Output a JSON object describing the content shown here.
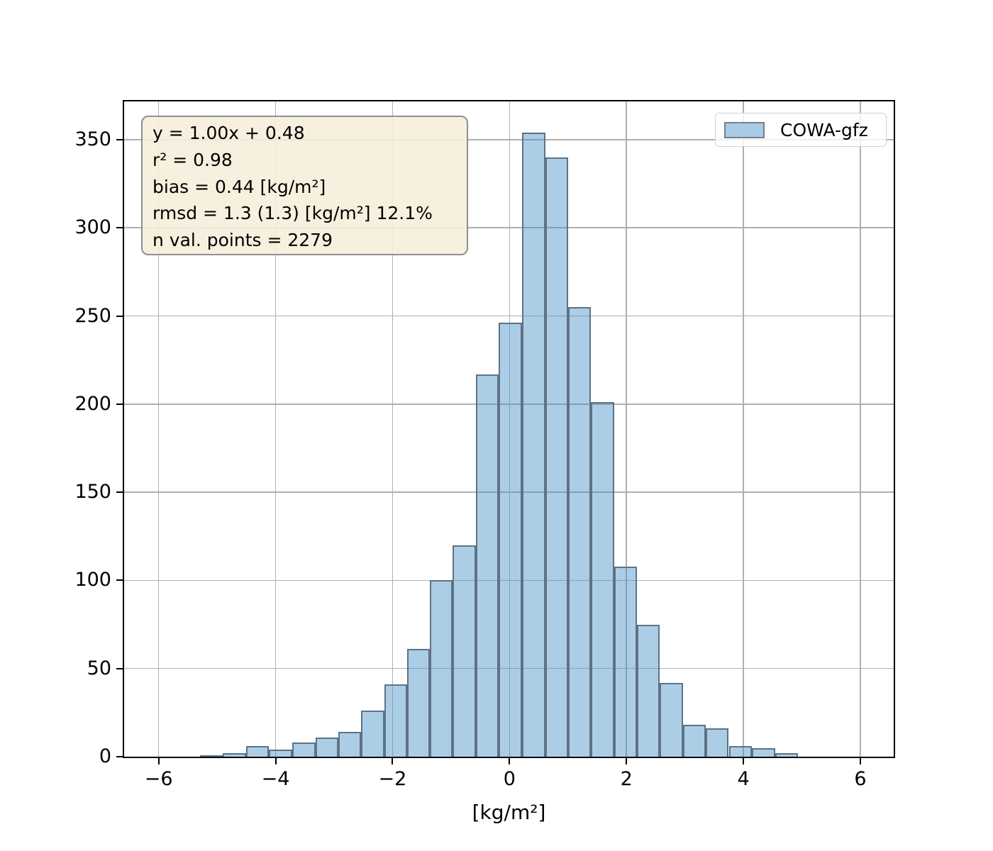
{
  "figure": {
    "background": "#ffffff",
    "axes": {
      "spine_color": "#000000",
      "grid_color": "#b0b0b0",
      "tick_color": "#000000"
    }
  },
  "stats_box": {
    "bg": "#f7eed9",
    "border": "#8f8f8f",
    "lines": [
      "y = 1.00x + 0.48",
      "r² = 0.98",
      "bias = 0.44 [kg/m²]",
      "rmsd = 1.3 (1.3) [kg/m²] 12.1%",
      "n val. points = 2279"
    ]
  },
  "legend": {
    "label": "COWA-gfz",
    "swatch_fill": "#a9cbe5",
    "swatch_border": "#75808a",
    "bg": "#ffffff",
    "border": "#d2d2d2"
  },
  "chart_data": {
    "type": "bar",
    "subtype": "histogram",
    "title": "",
    "xlabel": "[kg/m²]",
    "ylabel": "",
    "series_label": "COWA-gfz",
    "grid": true,
    "legend_position": "upper right",
    "xlim": [
      -6.59,
      6.57
    ],
    "ylim": [
      0,
      371.7
    ],
    "xticks": [
      -6,
      -4,
      -2,
      0,
      2,
      4,
      6
    ],
    "xtick_labels": [
      "−6",
      "−4",
      "−2",
      "0",
      "2",
      "4",
      "6"
    ],
    "yticks": [
      0,
      50,
      100,
      150,
      200,
      250,
      300,
      350
    ],
    "ytick_labels": [
      "0",
      "50",
      "100",
      "150",
      "200",
      "250",
      "300",
      "350"
    ],
    "bin_edges": [
      -5.29,
      -4.9,
      -4.5,
      -4.11,
      -3.72,
      -3.32,
      -2.93,
      -2.54,
      -2.14,
      -1.75,
      -1.36,
      -0.97,
      -0.57,
      -0.18,
      0.21,
      0.61,
      1.0,
      1.39,
      1.79,
      2.18,
      2.57,
      2.97,
      3.36,
      3.75,
      4.15,
      4.54,
      4.93
    ],
    "counts": [
      1,
      2,
      6,
      4,
      8,
      11,
      14,
      26,
      41,
      61,
      100,
      120,
      217,
      246,
      354,
      340,
      255,
      201,
      108,
      75,
      42,
      18,
      16,
      6,
      5,
      2
    ],
    "n_total": 2279,
    "bar_fill": "rgba(71,145,200,0.45)",
    "bar_edge": "#5d7386",
    "grid_color": "#b0b0b0"
  }
}
